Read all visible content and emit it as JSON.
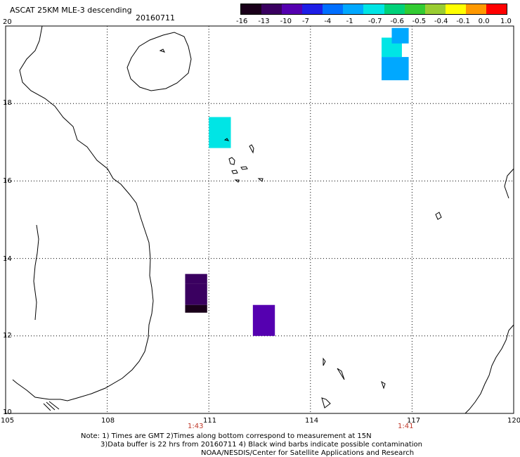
{
  "header": {
    "title": "ASCAT 25KM MLE-3 descending",
    "date": "20160711"
  },
  "colorbar": {
    "ticks": [
      "-16",
      "-13",
      "-10",
      "-7",
      "-4",
      "-1",
      "-0.7",
      "-0.6",
      "-0.5",
      "-0.4",
      "-0.1",
      "0.0",
      "1.0"
    ],
    "colors": [
      "#1a001a",
      "#3a0060",
      "#5500b0",
      "#1e1ee6",
      "#006fff",
      "#00a8ff",
      "#00e5e5",
      "#00d27a",
      "#33cc33",
      "#9acd32",
      "#ffff00",
      "#ff9900",
      "#ff0000"
    ]
  },
  "map": {
    "lat_labels": [
      "20",
      "18",
      "16",
      "14",
      "12",
      "10"
    ],
    "lon_labels": [
      "105",
      "108",
      "111",
      "114",
      "117",
      "120"
    ],
    "lat_range": [
      10,
      20
    ],
    "lon_range": [
      105,
      120
    ],
    "time_labels": [
      "1:43",
      "1:41"
    ],
    "data_cells": [
      {
        "lon": [
          116.1,
          116.7
        ],
        "lat": [
          19.7,
          19.2
        ],
        "value": -0.7
      },
      {
        "lon": [
          116.4,
          116.9
        ],
        "lat": [
          19.95,
          19.55
        ],
        "value": -1
      },
      {
        "lon": [
          116.1,
          116.9
        ],
        "lat": [
          19.2,
          18.6
        ],
        "value": -1
      },
      {
        "lon": [
          111.0,
          111.65
        ],
        "lat": [
          17.65,
          16.85
        ],
        "value": -0.7
      },
      {
        "lon": [
          110.3,
          110.95
        ],
        "lat": [
          13.6,
          13.35
        ],
        "value": -13
      },
      {
        "lon": [
          110.3,
          110.95
        ],
        "lat": [
          13.35,
          12.8
        ],
        "value": -13
      },
      {
        "lon": [
          110.3,
          110.95
        ],
        "lat": [
          12.8,
          12.6
        ],
        "value": -16
      },
      {
        "lon": [
          112.3,
          112.95
        ],
        "lat": [
          12.8,
          12.0
        ],
        "value": -10
      }
    ]
  },
  "footer": {
    "note_line1": "Note: 1) Times are GMT 2)Times along bottom correspond to measurement at 15N",
    "note_line2": "3)Data buffer is 22 hrs from 20160711 4) Black wind barbs indicate possible contamination",
    "note_line3": "NOAA/NESDIS/Center for Satellite Applications and Research"
  }
}
